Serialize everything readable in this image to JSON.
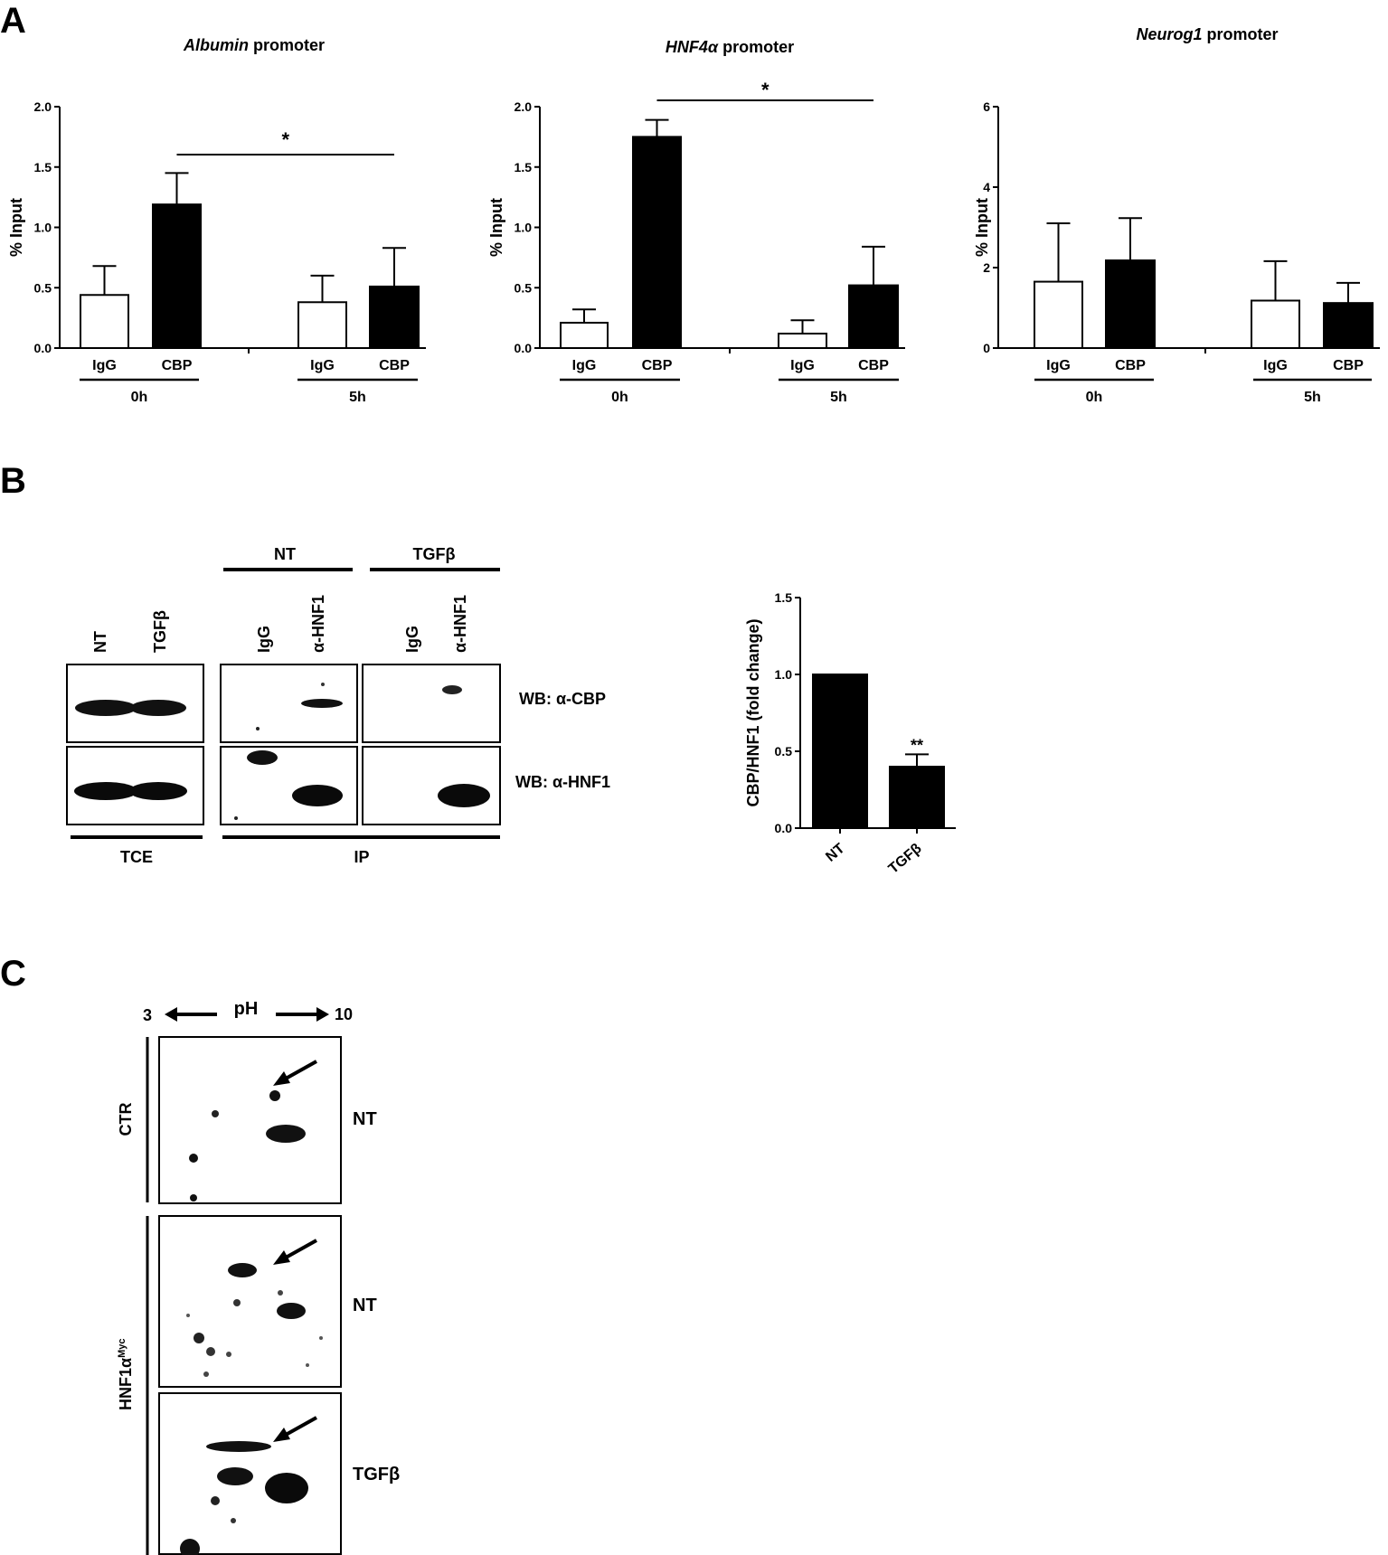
{
  "panel_labels": {
    "a": "A",
    "b": "B",
    "c": "C"
  },
  "chart_data": [
    {
      "type": "bar",
      "title_italic": "Albumin",
      "title_rest": " promoter",
      "ylabel": "% Input",
      "ylim": [
        0,
        2.0
      ],
      "yticks": [
        "0.0",
        "0.5",
        "1.0",
        "1.5",
        "2.0"
      ],
      "categories": [
        "IgG",
        "CBP",
        "IgG",
        "CBP"
      ],
      "groups": [
        "0h",
        "5h"
      ],
      "values": [
        0.44,
        1.19,
        0.38,
        0.51
      ],
      "errors": [
        0.24,
        0.26,
        0.22,
        0.32
      ],
      "fills": [
        "#ffffff",
        "#000000",
        "#ffffff",
        "#000000"
      ],
      "significance": {
        "label": "*",
        "from": 1,
        "to": 3
      }
    },
    {
      "type": "bar",
      "title_italic": "HNF4α",
      "title_rest": " promoter",
      "ylabel": "% Input",
      "ylim": [
        0,
        2.0
      ],
      "yticks": [
        "0.0",
        "0.5",
        "1.0",
        "1.5",
        "2.0"
      ],
      "categories": [
        "IgG",
        "CBP",
        "IgG",
        "CBP"
      ],
      "groups": [
        "0h",
        "5h"
      ],
      "values": [
        0.21,
        1.75,
        0.12,
        0.52
      ],
      "errors": [
        0.11,
        0.14,
        0.11,
        0.32
      ],
      "fills": [
        "#ffffff",
        "#000000",
        "#ffffff",
        "#000000"
      ],
      "significance": {
        "label": "*",
        "from": 1,
        "to": 3
      }
    },
    {
      "type": "bar",
      "title_italic": "Neurog1",
      "title_rest": " promoter",
      "ylabel": "% Input",
      "ylim": [
        0,
        6
      ],
      "yticks": [
        "0",
        "2",
        "4",
        "6"
      ],
      "categories": [
        "IgG",
        "CBP",
        "IgG",
        "CBP"
      ],
      "groups": [
        "0h",
        "5h"
      ],
      "values": [
        1.65,
        2.18,
        1.18,
        1.12
      ],
      "errors": [
        1.45,
        1.05,
        0.98,
        0.5
      ],
      "fills": [
        "#ffffff",
        "#000000",
        "#ffffff",
        "#000000"
      ],
      "significance": null
    },
    {
      "type": "bar",
      "title_italic": "",
      "title_rest": "",
      "ylabel": "CBP/HNF1 (fold change)",
      "ylim": [
        0,
        1.5
      ],
      "yticks": [
        "0.0",
        "0.5",
        "1.0",
        "1.5"
      ],
      "categories": [
        "NT",
        "TGFβ"
      ],
      "values": [
        1.0,
        0.4
      ],
      "errors": [
        0.0,
        0.08
      ],
      "fills": [
        "#000000",
        "#000000"
      ],
      "annotation": "**"
    }
  ],
  "blot_b": {
    "groups": {
      "nt": "NT",
      "tgfb": "TGFβ"
    },
    "tce_lanes": [
      "NT",
      "TGFβ"
    ],
    "ip_lanes": [
      "IgG",
      "α-HNF1",
      "IgG",
      "α-HNF1"
    ],
    "wb_labels": [
      "WB: α-CBP",
      "WB: α-HNF1"
    ],
    "footers": {
      "tce": "TCE",
      "ip": "IP"
    }
  },
  "gel_c": {
    "ph": {
      "low": "3",
      "label": "pH",
      "high": "10"
    },
    "row_labels": [
      "NT",
      "NT",
      "TGFβ"
    ],
    "side_labels": {
      "ctr": "CTR",
      "hnf1a_main": "HNF1α",
      "hnf1a_sup": "Myc"
    }
  }
}
